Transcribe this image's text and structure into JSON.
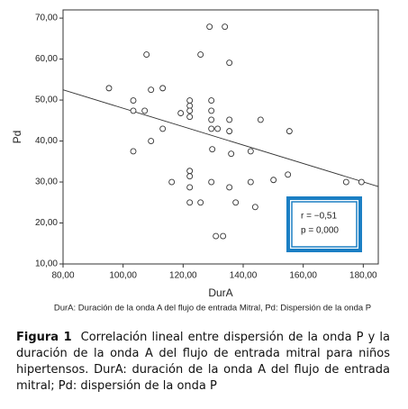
{
  "chart_data": {
    "type": "scatter",
    "x_label": "DurA",
    "y_label": "Pd",
    "xlim": [
      80,
      185
    ],
    "ylim": [
      10,
      72
    ],
    "xticks": [
      {
        "value": 80,
        "label": "80,00"
      },
      {
        "value": 100,
        "label": "100,00"
      },
      {
        "value": 120,
        "label": "120,00"
      },
      {
        "value": 140,
        "label": "140,00"
      },
      {
        "value": 160,
        "label": "160,00"
      },
      {
        "value": 180,
        "label": "180,00"
      }
    ],
    "yticks": [
      {
        "value": 10,
        "label": "10,00"
      },
      {
        "value": 20,
        "label": "20,00"
      },
      {
        "value": 30,
        "label": "30,00"
      },
      {
        "value": 40,
        "label": "40,00"
      },
      {
        "value": 50,
        "label": "50,00"
      },
      {
        "value": 60,
        "label": "60,00"
      },
      {
        "value": 70,
        "label": "70,00"
      }
    ],
    "points": {
      "x": [
        95.3,
        107.8,
        103.4,
        103.4,
        107.2,
        109.3,
        113.2,
        109.3,
        103.4,
        113.2,
        116.2,
        119.2,
        122.2,
        122.2,
        122.2,
        122.2,
        125.8,
        128.8,
        133.9,
        135.4,
        129.4,
        129.4,
        129.4,
        129.4,
        131.5,
        135.4,
        135.4,
        145.8,
        155.4,
        129.7,
        136.0,
        142.5,
        122.2,
        122.2,
        122.2,
        122.2,
        125.8,
        129.4,
        135.4,
        137.5,
        142.5,
        144.0,
        150.1,
        154.9,
        130.9,
        133.3,
        174.3,
        179.4
      ],
      "y": [
        52.9,
        61.1,
        49.9,
        47.4,
        47.4,
        52.5,
        52.9,
        40.0,
        37.5,
        43.0,
        30.0,
        46.8,
        49.9,
        48.6,
        47.4,
        45.9,
        61.1,
        67.9,
        67.9,
        59.1,
        49.9,
        47.4,
        45.2,
        43.0,
        43.0,
        45.2,
        42.4,
        45.2,
        42.4,
        38.0,
        36.9,
        37.5,
        32.7,
        31.4,
        28.7,
        25.0,
        25.0,
        30.0,
        28.7,
        25.0,
        30.0,
        23.9,
        30.5,
        31.8,
        16.8,
        16.8,
        30.0,
        30.0
      ]
    },
    "fit_line": {
      "x": [
        80,
        185
      ],
      "y": [
        52.5,
        28.9
      ]
    },
    "annotations": [
      "r = −0,51",
      "p = 0,000"
    ],
    "footnote": "DurA: Duración de la onda A del flujo de entrada Mitral, Pd: Dispersión de la onda P"
  },
  "figure_label": "Figura 1",
  "caption": "Correlación lineal entre dispersión de la onda P y la duración de la onda A del flujo de entrada mitral para niños hipertensos. DurA: duración de la onda A del flujo de entrada mitral; Pd: dispersión de la onda P"
}
